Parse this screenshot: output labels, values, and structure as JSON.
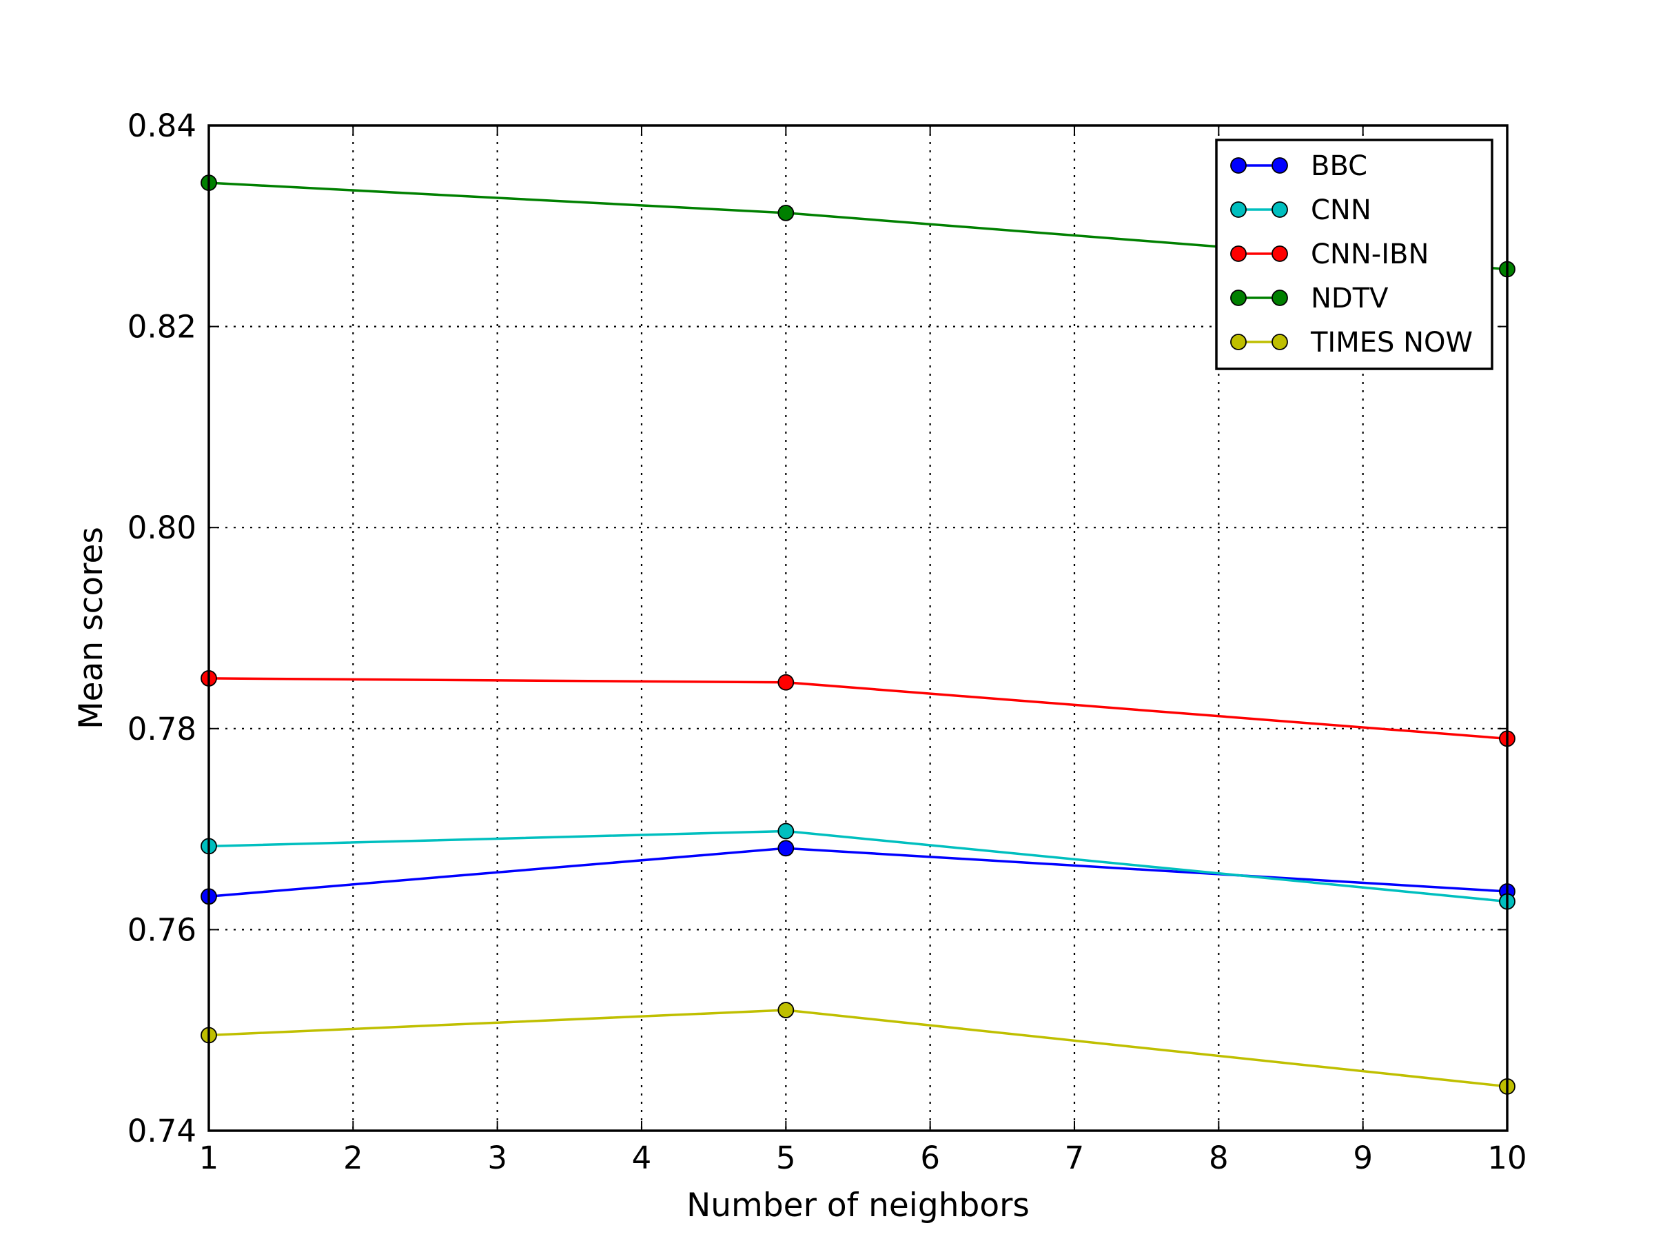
{
  "chart_data": {
    "type": "line",
    "title": "",
    "xlabel": "Number of neighbors",
    "ylabel": "Mean scores",
    "xlim": [
      1,
      10
    ],
    "ylim": [
      0.74,
      0.84
    ],
    "x_ticks": [
      1,
      2,
      3,
      4,
      5,
      6,
      7,
      8,
      9,
      10
    ],
    "y_ticks": [
      0.74,
      0.76,
      0.78,
      0.8,
      0.82,
      0.84
    ],
    "y_tick_labels": [
      "0.74",
      "0.76",
      "0.78",
      "0.80",
      "0.82",
      "0.84"
    ],
    "x_tick_labels": [
      "1",
      "2",
      "3",
      "4",
      "5",
      "6",
      "7",
      "8",
      "9",
      "10"
    ],
    "grid": true,
    "legend_position": "top-right",
    "x": [
      1,
      5,
      10
    ],
    "series": [
      {
        "name": "BBC",
        "color": "#0000ff",
        "values": [
          0.7633,
          0.7681,
          0.7638
        ]
      },
      {
        "name": "CNN",
        "color": "#00bfbf",
        "values": [
          0.7683,
          0.7698,
          0.7628
        ]
      },
      {
        "name": "CNN-IBN",
        "color": "#ff0000",
        "values": [
          0.785,
          0.7846,
          0.779
        ]
      },
      {
        "name": "NDTV",
        "color": "#008000",
        "values": [
          0.8343,
          0.8313,
          0.8257
        ]
      },
      {
        "name": "TIMES NOW",
        "color": "#bfbf00",
        "values": [
          0.7495,
          0.752,
          0.7444
        ]
      }
    ]
  }
}
